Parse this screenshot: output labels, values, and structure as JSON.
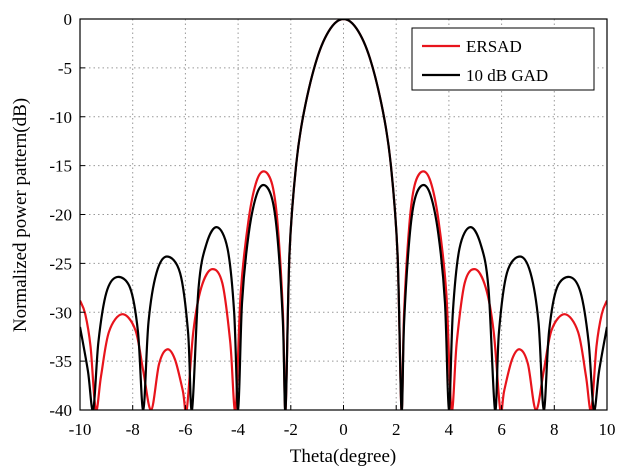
{
  "chart_data": {
    "type": "line",
    "title": "",
    "xlabel": "Theta(degree)",
    "ylabel": "Normalized power pattern(dB)",
    "xlim": [
      -10,
      10
    ],
    "ylim": [
      -40,
      0
    ],
    "xticks": [
      -10,
      -8,
      -6,
      -4,
      -2,
      0,
      2,
      4,
      6,
      8,
      10
    ],
    "yticks": [
      0,
      -5,
      -10,
      -15,
      -20,
      -25,
      -30,
      -35,
      -40
    ],
    "xtick_labels": [
      "-10",
      "-8",
      "-6",
      "-4",
      "-2",
      "0",
      "2",
      "4",
      "6",
      "8",
      "10"
    ],
    "ytick_labels": [
      "0",
      "-5",
      "-10",
      "-15",
      "-20",
      "-25",
      "-30",
      "-35",
      "-40"
    ],
    "grid": true,
    "legend_position": "top-right",
    "series": [
      {
        "name": "ERSAD",
        "color": "#e8141c",
        "points": [
          [
            0,
            0
          ],
          [
            0.5,
            -1.0
          ],
          [
            1.0,
            -4.0
          ],
          [
            1.5,
            -9.5
          ],
          [
            1.8,
            -15.0
          ],
          [
            2.05,
            -24.0
          ],
          [
            2.2,
            -40
          ],
          [
            2.3,
            -30.0
          ],
          [
            2.5,
            -21.0
          ],
          [
            2.7,
            -17.0
          ],
          [
            3.0,
            -15.6
          ],
          [
            3.3,
            -16.6
          ],
          [
            3.6,
            -20.5
          ],
          [
            3.9,
            -28.0
          ],
          [
            4.1,
            -40
          ],
          [
            4.3,
            -33.0
          ],
          [
            4.6,
            -27.0
          ],
          [
            5.0,
            -25.6
          ],
          [
            5.4,
            -27.5
          ],
          [
            5.7,
            -32.0
          ],
          [
            5.95,
            -40
          ],
          [
            6.1,
            -38.0
          ],
          [
            6.4,
            -34.8
          ],
          [
            6.7,
            -33.8
          ],
          [
            7.0,
            -35.3
          ],
          [
            7.3,
            -40
          ],
          [
            7.6,
            -36.0
          ],
          [
            7.9,
            -31.8
          ],
          [
            8.4,
            -30.2
          ],
          [
            8.9,
            -32.0
          ],
          [
            9.2,
            -36.5
          ],
          [
            9.4,
            -40
          ],
          [
            9.6,
            -33.5
          ],
          [
            9.8,
            -30.2
          ],
          [
            10.0,
            -28.8
          ]
        ]
      },
      {
        "name": "10 dB GAD",
        "color": "#000000",
        "points": [
          [
            0,
            0
          ],
          [
            0.5,
            -1.0
          ],
          [
            1.0,
            -4.0
          ],
          [
            1.5,
            -9.5
          ],
          [
            1.8,
            -15.0
          ],
          [
            2.05,
            -24.0
          ],
          [
            2.2,
            -40
          ],
          [
            2.3,
            -31.0
          ],
          [
            2.5,
            -22.5
          ],
          [
            2.7,
            -18.5
          ],
          [
            3.0,
            -17.0
          ],
          [
            3.3,
            -18.0
          ],
          [
            3.6,
            -22.0
          ],
          [
            3.85,
            -29.0
          ],
          [
            4.0,
            -40
          ],
          [
            4.15,
            -30.0
          ],
          [
            4.4,
            -23.5
          ],
          [
            4.8,
            -21.3
          ],
          [
            5.2,
            -23.0
          ],
          [
            5.5,
            -27.5
          ],
          [
            5.75,
            -40
          ],
          [
            5.9,
            -32.0
          ],
          [
            6.2,
            -26.0
          ],
          [
            6.7,
            -24.3
          ],
          [
            7.1,
            -26.0
          ],
          [
            7.4,
            -31.0
          ],
          [
            7.6,
            -40
          ],
          [
            7.8,
            -32.0
          ],
          [
            8.1,
            -27.5
          ],
          [
            8.6,
            -26.4
          ],
          [
            9.0,
            -28.0
          ],
          [
            9.3,
            -33.0
          ],
          [
            9.5,
            -40
          ],
          [
            9.7,
            -36.0
          ],
          [
            10.0,
            -31.5
          ]
        ]
      }
    ]
  }
}
